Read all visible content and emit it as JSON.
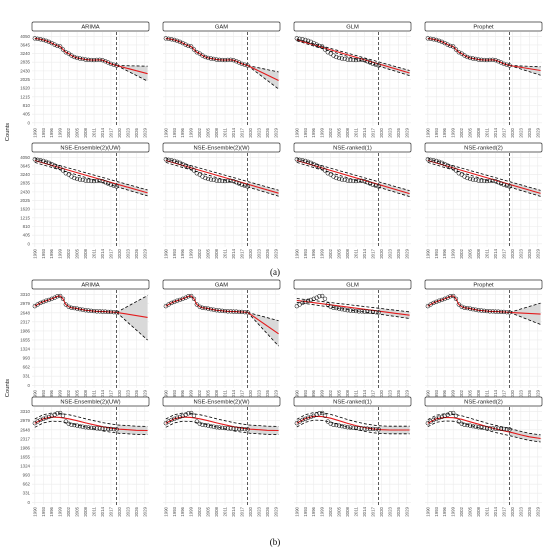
{
  "figure": {
    "y_axis_label": "Counts",
    "subfigure_labels": [
      "(a)",
      "(b)"
    ]
  },
  "styles": {
    "observed_point_color": "#000000",
    "fitted_line_color": "#e31a1c",
    "band_fill_color": "#d9d9d9",
    "bound_line_color": "#000000",
    "grid": true,
    "forecast_start_marker": "vertical dashed line at 2019"
  },
  "chart_data": [
    {
      "type": "line",
      "subfigure": "(a)",
      "y_ticks": [
        0,
        405,
        810,
        1215,
        1620,
        2025,
        2430,
        2835,
        3240,
        3645,
        4050
      ],
      "ylim": [
        -150,
        4250
      ],
      "x_ticks": [
        1990,
        1993,
        1996,
        1999,
        2002,
        2005,
        2008,
        2011,
        2014,
        2017,
        2020,
        2023,
        2026,
        2029
      ],
      "xlim": [
        1989,
        2030.5
      ],
      "forecast_start": 2019,
      "observed": {
        "x": [
          1990,
          1991,
          1992,
          1993,
          1994,
          1995,
          1996,
          1997,
          1998,
          1999,
          2000,
          2001,
          2002,
          2003,
          2004,
          2005,
          2006,
          2007,
          2008,
          2009,
          2010,
          2011,
          2012,
          2013,
          2014,
          2015,
          2016,
          2017,
          2018,
          2019
        ],
        "y": [
          3950,
          3930,
          3910,
          3880,
          3840,
          3790,
          3730,
          3660,
          3600,
          3570,
          3430,
          3300,
          3240,
          3150,
          3080,
          3040,
          3010,
          2990,
          2960,
          2950,
          2940,
          2935,
          2945,
          2950,
          2930,
          2880,
          2820,
          2760,
          2720,
          2680
        ]
      },
      "panels": [
        {
          "title": "ARIMA",
          "fit_type": "track",
          "forecast": {
            "x": [
              2019,
              2030
            ],
            "y": [
              2680,
              2300
            ]
          },
          "band": {
            "x": [
              2019,
              2030
            ],
            "upper": [
              2680,
              2650
            ],
            "lower": [
              2680,
              1950
            ]
          }
        },
        {
          "title": "GAM",
          "fit_type": "track",
          "forecast": {
            "x": [
              2019,
              2030
            ],
            "y": [
              2680,
              1980
            ]
          },
          "band": {
            "x": [
              2019,
              2030
            ],
            "upper": [
              2680,
              2380
            ],
            "lower": [
              2680,
              1580
            ]
          }
        },
        {
          "title": "GLM",
          "fit_type": "trend",
          "fit": {
            "x": [
              1990,
              2030
            ],
            "y": [
              3880,
              2330
            ]
          },
          "upper": {
            "x": [
              1990,
              2030
            ],
            "y": [
              3920,
              2450
            ]
          },
          "lower": {
            "x": [
              1990,
              2030
            ],
            "y": [
              3840,
              2210
            ]
          }
        },
        {
          "title": "Prophet",
          "fit_type": "track",
          "forecast": {
            "x": [
              2019,
              2030
            ],
            "y": [
              2680,
              2450
            ]
          },
          "band": {
            "x": [
              2019,
              2030
            ],
            "upper": [
              2680,
              2620
            ],
            "lower": [
              2680,
              2230
            ]
          }
        },
        {
          "title": "NSE-Ensemble(2)(UW)",
          "fit_type": "trend",
          "fit": {
            "x": [
              1990,
              2030
            ],
            "y": [
              3900,
              2380
            ]
          },
          "upper": {
            "x": [
              1990,
              2030
            ],
            "y": [
              3990,
              2520
            ]
          },
          "lower": {
            "x": [
              1990,
              2030
            ],
            "y": [
              3810,
              2240
            ]
          }
        },
        {
          "title": "NSE-Ensemble(2)(W)",
          "fit_type": "trend",
          "fit": {
            "x": [
              1990,
              2030
            ],
            "y": [
              3900,
              2370
            ]
          },
          "upper": {
            "x": [
              1990,
              2030
            ],
            "y": [
              3990,
              2510
            ]
          },
          "lower": {
            "x": [
              1990,
              2030
            ],
            "y": [
              3810,
              2230
            ]
          }
        },
        {
          "title": "NSE-ranked(1)",
          "fit_type": "trend",
          "fit": {
            "x": [
              1990,
              2030
            ],
            "y": [
              3900,
              2350
            ]
          },
          "upper": {
            "x": [
              1990,
              2030
            ],
            "y": [
              3990,
              2490
            ]
          },
          "lower": {
            "x": [
              1990,
              2030
            ],
            "y": [
              3810,
              2210
            ]
          }
        },
        {
          "title": "NSE-ranked(2)",
          "fit_type": "trend",
          "fit": {
            "x": [
              1990,
              2030
            ],
            "y": [
              3900,
              2360
            ]
          },
          "upper": {
            "x": [
              1990,
              2030
            ],
            "y": [
              3990,
              2500
            ]
          },
          "lower": {
            "x": [
              1990,
              2030
            ],
            "y": [
              3810,
              2220
            ]
          }
        }
      ]
    },
    {
      "type": "line",
      "subfigure": "(b)",
      "y_ticks": [
        0,
        331,
        662,
        993,
        1324,
        1655,
        1986,
        2317,
        2648,
        2979,
        3310
      ],
      "ylim": [
        -100,
        3480
      ],
      "x_ticks": [
        1990,
        1993,
        1996,
        1999,
        2002,
        2005,
        2008,
        2011,
        2014,
        2017,
        2020,
        2023,
        2026,
        2029
      ],
      "xlim": [
        1989,
        2030.5
      ],
      "forecast_start": 2019,
      "observed": {
        "x": [
          1990,
          1991,
          1992,
          1993,
          1994,
          1995,
          1996,
          1997,
          1998,
          1999,
          2000,
          2001,
          2002,
          2003,
          2004,
          2005,
          2006,
          2007,
          2008,
          2009,
          2010,
          2011,
          2012,
          2013,
          2014,
          2015,
          2016,
          2017,
          2018,
          2019
        ],
        "y": [
          2890,
          2950,
          3010,
          3050,
          3090,
          3120,
          3160,
          3200,
          3250,
          3260,
          3160,
          2950,
          2870,
          2830,
          2820,
          2800,
          2780,
          2760,
          2740,
          2730,
          2720,
          2710,
          2700,
          2700,
          2690,
          2690,
          2680,
          2680,
          2670,
          2660
        ]
      },
      "panels": [
        {
          "title": "ARIMA",
          "fit_type": "track",
          "forecast": {
            "x": [
              2019,
              2030
            ],
            "y": [
              2660,
              2480
            ]
          },
          "band": {
            "x": [
              2019,
              2030
            ],
            "upper": [
              2660,
              3280
            ],
            "lower": [
              2660,
              1650
            ]
          }
        },
        {
          "title": "GAM",
          "fit_type": "track",
          "forecast": {
            "x": [
              2019,
              2030
            ],
            "y": [
              2660,
              1880
            ]
          },
          "band": {
            "x": [
              2019,
              2030
            ],
            "upper": [
              2660,
              2360
            ],
            "lower": [
              2660,
              1430
            ]
          }
        },
        {
          "title": "GLM",
          "fit_type": "trend",
          "fit": {
            "x": [
              1990,
              2030
            ],
            "y": [
              3100,
              2560
            ]
          },
          "upper": {
            "x": [
              1990,
              2030
            ],
            "y": [
              3170,
              2680
            ]
          },
          "lower": {
            "x": [
              1990,
              2030
            ],
            "y": [
              3030,
              2440
            ]
          }
        },
        {
          "title": "Prophet",
          "fit_type": "track",
          "forecast": {
            "x": [
              2019,
              2030
            ],
            "y": [
              2660,
              2600
            ]
          },
          "band": {
            "x": [
              2019,
              2030
            ],
            "upper": [
              2660,
              3000
            ],
            "lower": [
              2660,
              2220
            ]
          }
        },
        {
          "title": "NSE-Ensemble(2)(UW)",
          "fit_type": "hump",
          "fit": {
            "x": [
              1990,
              1993,
              1996,
              1999,
              2002,
              2005,
              2008,
              2011,
              2014,
              2017,
              2020,
              2023,
              2026,
              2030
            ],
            "y": [
              2890,
              3050,
              3110,
              3100,
              3050,
              2980,
              2900,
              2830,
              2760,
              2710,
              2670,
              2650,
              2630,
              2620
            ]
          },
          "band_width": 150
        },
        {
          "title": "NSE-Ensemble(2)(W)",
          "fit_type": "hump",
          "fit": {
            "x": [
              1990,
              1993,
              1996,
              1999,
              2002,
              2005,
              2008,
              2011,
              2014,
              2017,
              2020,
              2023,
              2026,
              2030
            ],
            "y": [
              2890,
              3050,
              3110,
              3100,
              3050,
              2980,
              2900,
              2830,
              2760,
              2710,
              2670,
              2650,
              2630,
              2620
            ]
          },
          "band_width": 150
        },
        {
          "title": "NSE-ranked(1)",
          "fit_type": "hump",
          "fit": {
            "x": [
              1990,
              1993,
              1996,
              1999,
              2002,
              2005,
              2008,
              2011,
              2014,
              2017,
              2020,
              2023,
              2026,
              2030
            ],
            "y": [
              2890,
              3060,
              3140,
              3130,
              3070,
              2980,
              2880,
              2800,
              2730,
              2680,
              2650,
              2640,
              2640,
              2640
            ]
          },
          "band_width": 140
        },
        {
          "title": "NSE-ranked(2)",
          "fit_type": "hump",
          "fit": {
            "x": [
              1990,
              1993,
              1996,
              1999,
              2002,
              2005,
              2008,
              2011,
              2014,
              2017,
              2020,
              2023,
              2026,
              2030
            ],
            "y": [
              2890,
              3050,
              3100,
              3090,
              3030,
              2940,
              2850,
              2760,
              2680,
              2610,
              2540,
              2460,
              2390,
              2330
            ]
          },
          "band_width": 130
        }
      ]
    }
  ]
}
